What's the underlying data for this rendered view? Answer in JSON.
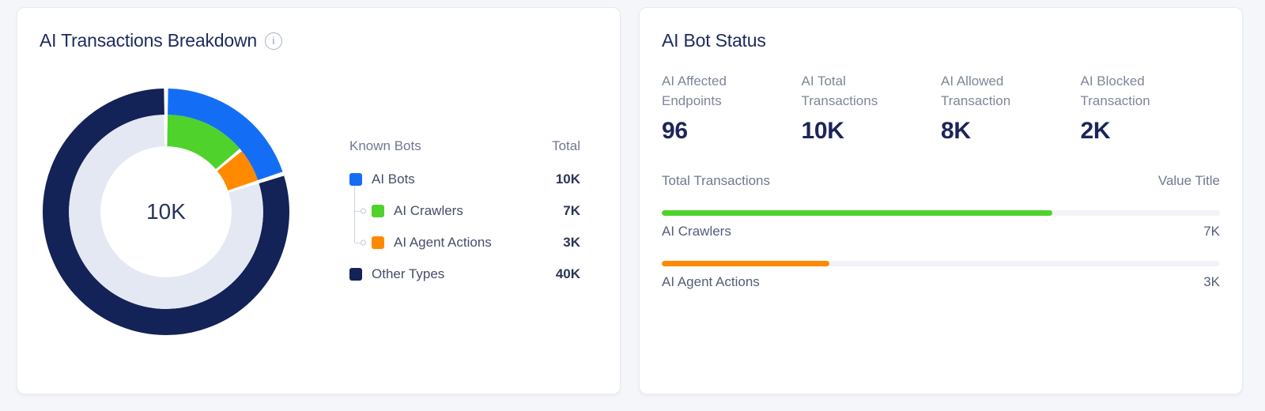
{
  "left_card": {
    "title": "AI Transactions Breakdown",
    "info_icon_glyph": "i",
    "legend": {
      "header_left": "Known Bots",
      "header_right": "Total",
      "items": [
        {
          "label": "AI Bots",
          "total": "10K",
          "color": "#146EF5",
          "indent": false
        },
        {
          "label": "AI Crawlers",
          "total": "7K",
          "color": "#4FD22C",
          "indent": true
        },
        {
          "label": "AI Agent Actions",
          "total": "3K",
          "color": "#FF8A00",
          "indent": true
        },
        {
          "label": "Other Types",
          "total": "40K",
          "color": "#132257",
          "indent": false
        }
      ]
    }
  },
  "right_card": {
    "title": "AI Bot Status",
    "stats": [
      {
        "label": "AI Affected Endpoints",
        "value": "96"
      },
      {
        "label": "AI Total Transactions",
        "value": "10K"
      },
      {
        "label": "AI Allowed Transaction",
        "value": "8K"
      },
      {
        "label": "AI Blocked Transaction",
        "value": "2K"
      }
    ],
    "bars_header_left": "Total Transactions",
    "bars_header_right": "Value Title"
  },
  "colors": {
    "blue": "#146EF5",
    "green": "#4FD22C",
    "orange": "#FF8A00",
    "navy": "#132257",
    "ring_remainder": "#E4E8F3",
    "page_background": "#F5F6FA",
    "card_background": "#FFFFFF"
  },
  "chart_data": [
    {
      "type": "pie",
      "variant": "double-ring-donut",
      "title": "AI Transactions Breakdown",
      "center_label": "10K",
      "outer_ring": {
        "segments": [
          {
            "label": "AI Bots",
            "value": 10000,
            "color": "#146EF5"
          },
          {
            "label": "Other Types",
            "value": 40000,
            "color": "#132257"
          }
        ]
      },
      "inner_ring": {
        "segments": [
          {
            "label": "AI Crawlers",
            "value": 7000,
            "color": "#4FD22C"
          },
          {
            "label": "AI Agent Actions",
            "value": 3000,
            "color": "#FF8A00"
          },
          {
            "label": "Remainder",
            "value": 40000,
            "color": "#E4E8F3"
          }
        ]
      },
      "legend_position": "right"
    },
    {
      "type": "bar",
      "orientation": "horizontal",
      "title": "AI Bot Status — Total Transactions",
      "categories": [
        "AI Crawlers",
        "AI Agent Actions"
      ],
      "values": [
        7000,
        3000
      ],
      "value_labels": [
        "7K",
        "3K"
      ],
      "max": 10000,
      "colors": [
        "#4FD22C",
        "#FF8A00"
      ]
    }
  ]
}
